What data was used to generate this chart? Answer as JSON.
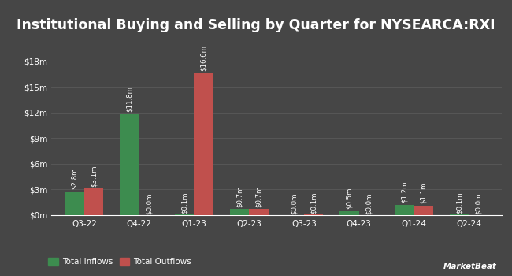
{
  "title": "Institutional Buying and Selling by Quarter for NYSEARCA:RXI",
  "quarters": [
    "Q3-22",
    "Q4-22",
    "Q1-23",
    "Q2-23",
    "Q3-23",
    "Q4-23",
    "Q1-24",
    "Q2-24"
  ],
  "inflows": [
    2.8,
    11.8,
    0.1,
    0.7,
    0.0,
    0.5,
    1.2,
    0.1
  ],
  "outflows": [
    3.1,
    0.0,
    16.6,
    0.7,
    0.1,
    0.0,
    1.1,
    0.0
  ],
  "inflow_labels": [
    "$2.8m",
    "$11.8m",
    "$0.1m",
    "$0.7m",
    "$0.0m",
    "$0.5m",
    "$1.2m",
    "$0.1m"
  ],
  "outflow_labels": [
    "$3.1m",
    "$0.0m",
    "$16.6m",
    "$0.7m",
    "$0.1m",
    "$0.0m",
    "$1.1m",
    "$0.0m"
  ],
  "inflow_color": "#3d8c4f",
  "outflow_color": "#c0504d",
  "background_color": "#464646",
  "text_color": "#ffffff",
  "grid_color": "#5a5a5a",
  "bar_width": 0.35,
  "ylim": [
    0,
    20
  ],
  "yticks": [
    0,
    3,
    6,
    9,
    12,
    15,
    18
  ],
  "ytick_labels": [
    "$0m",
    "$3m",
    "$6m",
    "$9m",
    "$12m",
    "$15m",
    "$18m"
  ],
  "title_fontsize": 12.5,
  "label_fontsize": 6.2,
  "tick_fontsize": 7.5,
  "legend_fontsize": 7.5
}
